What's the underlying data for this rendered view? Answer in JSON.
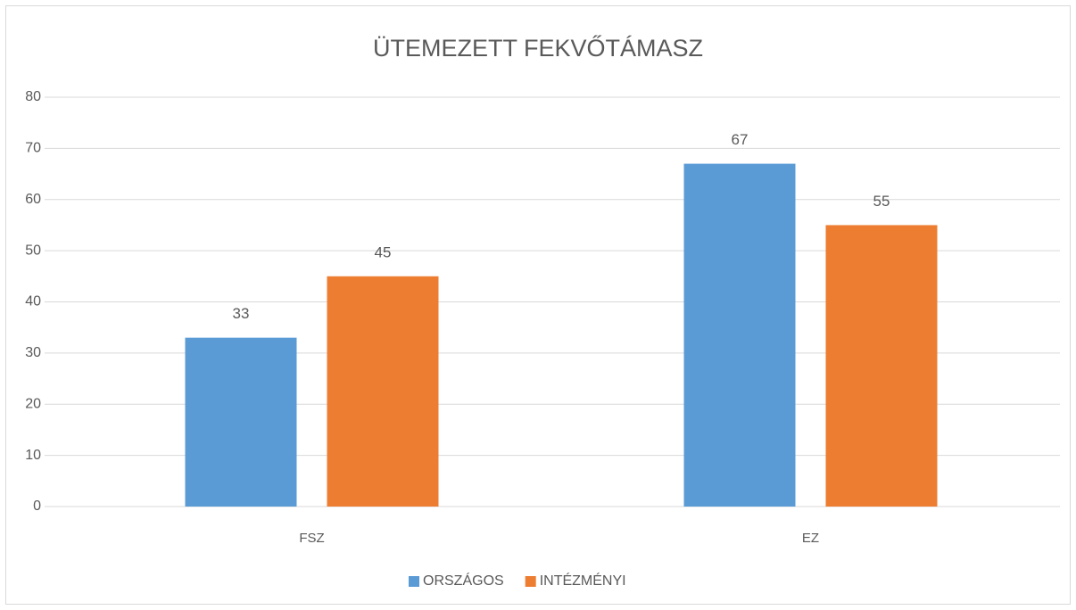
{
  "chart_data": {
    "type": "bar",
    "title": "ÜTEMEZETT FEKVŐTÁMASZ",
    "categories": [
      "FSZ",
      "EZ"
    ],
    "series": [
      {
        "name": "ORSZÁGOS",
        "color": "#5b9bd5",
        "values": [
          33,
          67
        ]
      },
      {
        "name": "INTÉZMÉNYI",
        "color": "#ed7d31",
        "values": [
          45,
          55
        ]
      }
    ],
    "ylim": [
      0,
      80
    ],
    "yticks": [
      0,
      10,
      20,
      30,
      40,
      50,
      60,
      70,
      80
    ],
    "grid": true,
    "legend": "bottom"
  }
}
